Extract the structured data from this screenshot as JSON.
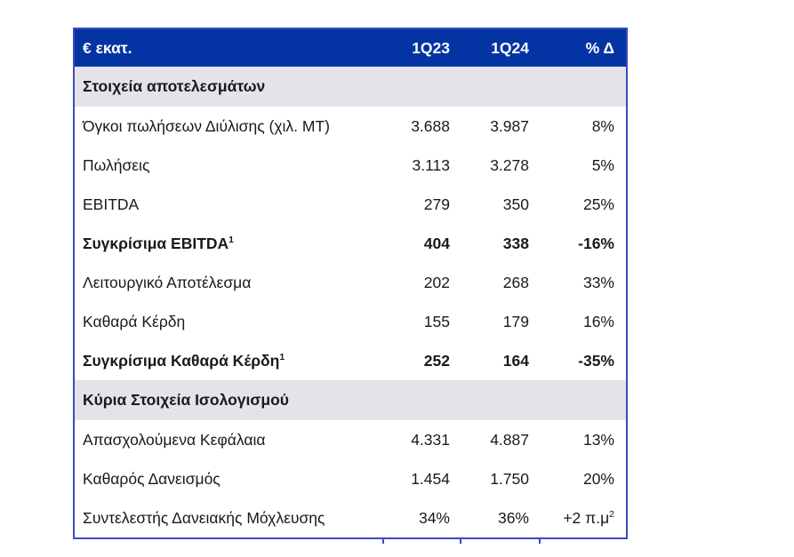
{
  "table": {
    "unit_label": "€ εκατ.",
    "columns": [
      "1Q23",
      "1Q24",
      "% Δ"
    ],
    "sections": [
      {
        "title": "Στοιχεία αποτελεσμάτων",
        "rows": [
          {
            "label": "Όγκοι πωλήσεων Διύλισης (χιλ. ΜΤ)",
            "label_sup": "",
            "v1": "3.688",
            "v2": "3.987",
            "delta": "8%",
            "delta_sup": "",
            "bold": false
          },
          {
            "label": "Πωλήσεις",
            "label_sup": "",
            "v1": "3.113",
            "v2": "3.278",
            "delta": "5%",
            "delta_sup": "",
            "bold": false
          },
          {
            "label": "EBITDA",
            "label_sup": "",
            "v1": "279",
            "v2": "350",
            "delta": "25%",
            "delta_sup": "",
            "bold": false
          },
          {
            "label": "Συγκρίσιμα EBITDA",
            "label_sup": "1",
            "v1": "404",
            "v2": "338",
            "delta": "-16%",
            "delta_sup": "",
            "bold": true
          },
          {
            "label": "Λειτουργικό Αποτέλεσμα",
            "label_sup": "",
            "v1": "202",
            "v2": "268",
            "delta": "33%",
            "delta_sup": "",
            "bold": false
          },
          {
            "label": "Καθαρά Κέρδη",
            "label_sup": "",
            "v1": "155",
            "v2": "179",
            "delta": "16%",
            "delta_sup": "",
            "bold": false
          },
          {
            "label": "Συγκρίσιμα Καθαρά Κέρδη",
            "label_sup": "1",
            "v1": "252",
            "v2": "164",
            "delta": "-35%",
            "delta_sup": "",
            "bold": true
          }
        ]
      },
      {
        "title": "Κύρια Στοιχεία Ισολογισμού",
        "rows": [
          {
            "label": "Απασχολούμενα Κεφάλαια",
            "label_sup": "",
            "v1": "4.331",
            "v2": "4.887",
            "delta": "13%",
            "delta_sup": "",
            "bold": false
          },
          {
            "label": "Καθαρός Δανεισμός",
            "label_sup": "",
            "v1": "1.454",
            "v2": "1.750",
            "delta": "20%",
            "delta_sup": "",
            "bold": false
          },
          {
            "label": "Συντελεστής Δανειακής Μόχλευσης",
            "label_sup": "",
            "v1": "34%",
            "v2": "36%",
            "delta": "+2 π.μ",
            "delta_sup": "2",
            "bold": false
          }
        ]
      }
    ],
    "colors": {
      "header_bg": "#0434a3",
      "header_text": "#ffffff",
      "section_bg": "#e4e3e7",
      "border": "#3b4ac1",
      "text": "#1a1a1a"
    }
  }
}
